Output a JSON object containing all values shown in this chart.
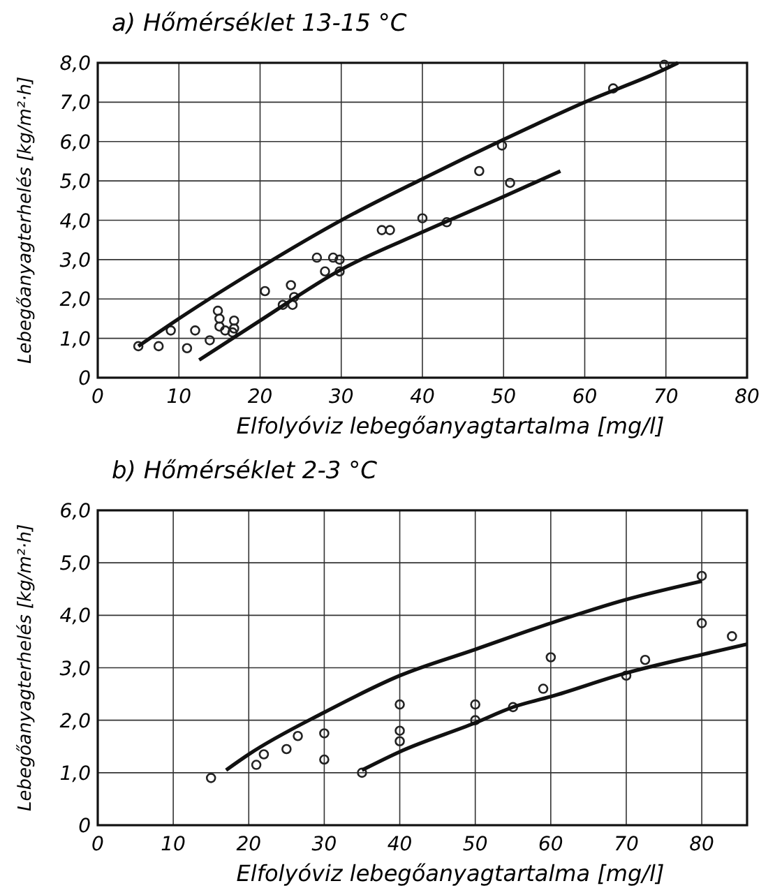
{
  "chart_data": [
    {
      "type": "scatter",
      "title": "a) Hőmérséklet 13-15 °C",
      "xlabel": "Elfolyóviz lebegőanyagtartalma [mg/l]",
      "ylabel": "Lebegőanyagterhelés [kg/m²·h]",
      "xlim": [
        0,
        80
      ],
      "ylim": [
        0,
        8
      ],
      "xticks": [
        0,
        10,
        20,
        30,
        40,
        50,
        60,
        70,
        80
      ],
      "yticks": [
        0,
        {
          "value": 1,
          "label": "1,0"
        },
        {
          "value": 2,
          "label": "2,0"
        },
        {
          "value": 3,
          "label": "3,0"
        },
        {
          "value": 4,
          "label": "4,0"
        },
        {
          "value": 5,
          "label": "5,0"
        },
        {
          "value": 6,
          "label": "6,0"
        },
        {
          "value": 7,
          "label": "7,0"
        },
        {
          "value": 8,
          "label": "8,0"
        }
      ],
      "grid": true,
      "series": [
        {
          "marker": "circle",
          "color": "#222222",
          "x": [
            5,
            7.5,
            9,
            11,
            12,
            13.8,
            14.8,
            15,
            15,
            15.7,
            16.6,
            16.8,
            16.8,
            20.6,
            22.8,
            23.8,
            24,
            24.2,
            27,
            28,
            29,
            29.8,
            29.8,
            35,
            36,
            40,
            43,
            47,
            49.8,
            50.8,
            63.5,
            69.8
          ],
          "values": [
            0.8,
            0.8,
            1.2,
            0.75,
            1.2,
            0.95,
            1.7,
            1.3,
            1.5,
            1.2,
            1.15,
            1.45,
            1.25,
            2.2,
            1.85,
            2.35,
            1.85,
            2.05,
            3.05,
            2.7,
            3.05,
            3.0,
            2.7,
            3.75,
            3.75,
            4.05,
            3.95,
            5.25,
            5.9,
            4.95,
            7.35,
            7.95
          ]
        },
        {
          "type": "line",
          "line_style": "solid",
          "color": "#111111",
          "x": [
            5,
            10,
            20,
            30,
            40,
            50,
            60,
            70,
            71.5
          ],
          "values": [
            0.8,
            1.5,
            2.8,
            4.0,
            5.05,
            6.05,
            7.0,
            7.85,
            8.0
          ]
        },
        {
          "type": "line",
          "line_style": "solid",
          "color": "#111111",
          "x": [
            12.5,
            20,
            30,
            40,
            50,
            57
          ],
          "values": [
            0.45,
            1.45,
            2.75,
            3.7,
            4.6,
            5.25
          ]
        }
      ]
    },
    {
      "type": "scatter",
      "title": "b) Hőmérséklet 2-3 °C",
      "xlabel": "Elfolyóviz lebegőanyagtartalma [mg/l]",
      "ylabel": "Lebegőanyagterhelés [kg/m²·h]",
      "xlim": [
        0,
        86
      ],
      "ylim": [
        0,
        6
      ],
      "xticks": [
        0,
        10,
        20,
        30,
        40,
        50,
        60,
        70,
        80
      ],
      "yticks": [
        0,
        {
          "value": 1,
          "label": "1,0"
        },
        {
          "value": 2,
          "label": "2,0"
        },
        {
          "value": 3,
          "label": "3,0"
        },
        {
          "value": 4,
          "label": "4,0"
        },
        {
          "value": 5,
          "label": "5,0"
        },
        {
          "value": 6,
          "label": "6,0"
        }
      ],
      "grid": true,
      "series": [
        {
          "marker": "circle",
          "color": "#222222",
          "x": [
            15,
            21,
            22,
            25,
            26.5,
            30,
            30,
            35,
            40,
            40,
            40,
            50,
            50,
            55,
            59,
            60,
            70,
            72.5,
            80,
            80,
            84
          ],
          "values": [
            0.9,
            1.15,
            1.35,
            1.45,
            1.7,
            1.75,
            1.25,
            1.0,
            2.3,
            1.8,
            1.6,
            2.3,
            2.0,
            2.25,
            2.6,
            3.2,
            2.85,
            3.15,
            4.75,
            3.85,
            3.6
          ]
        },
        {
          "type": "line",
          "line_style": "solid",
          "color": "#111111",
          "x": [
            17,
            20,
            30,
            40,
            50,
            60,
            70,
            80
          ],
          "values": [
            1.05,
            1.35,
            2.15,
            2.85,
            3.35,
            3.85,
            4.3,
            4.65
          ]
        },
        {
          "type": "line",
          "line_style": "solid",
          "color": "#111111",
          "x": [
            35,
            40,
            50,
            55,
            60,
            70,
            80,
            86
          ],
          "values": [
            1.05,
            1.4,
            1.95,
            2.25,
            2.45,
            2.9,
            3.25,
            3.45
          ]
        }
      ]
    }
  ]
}
